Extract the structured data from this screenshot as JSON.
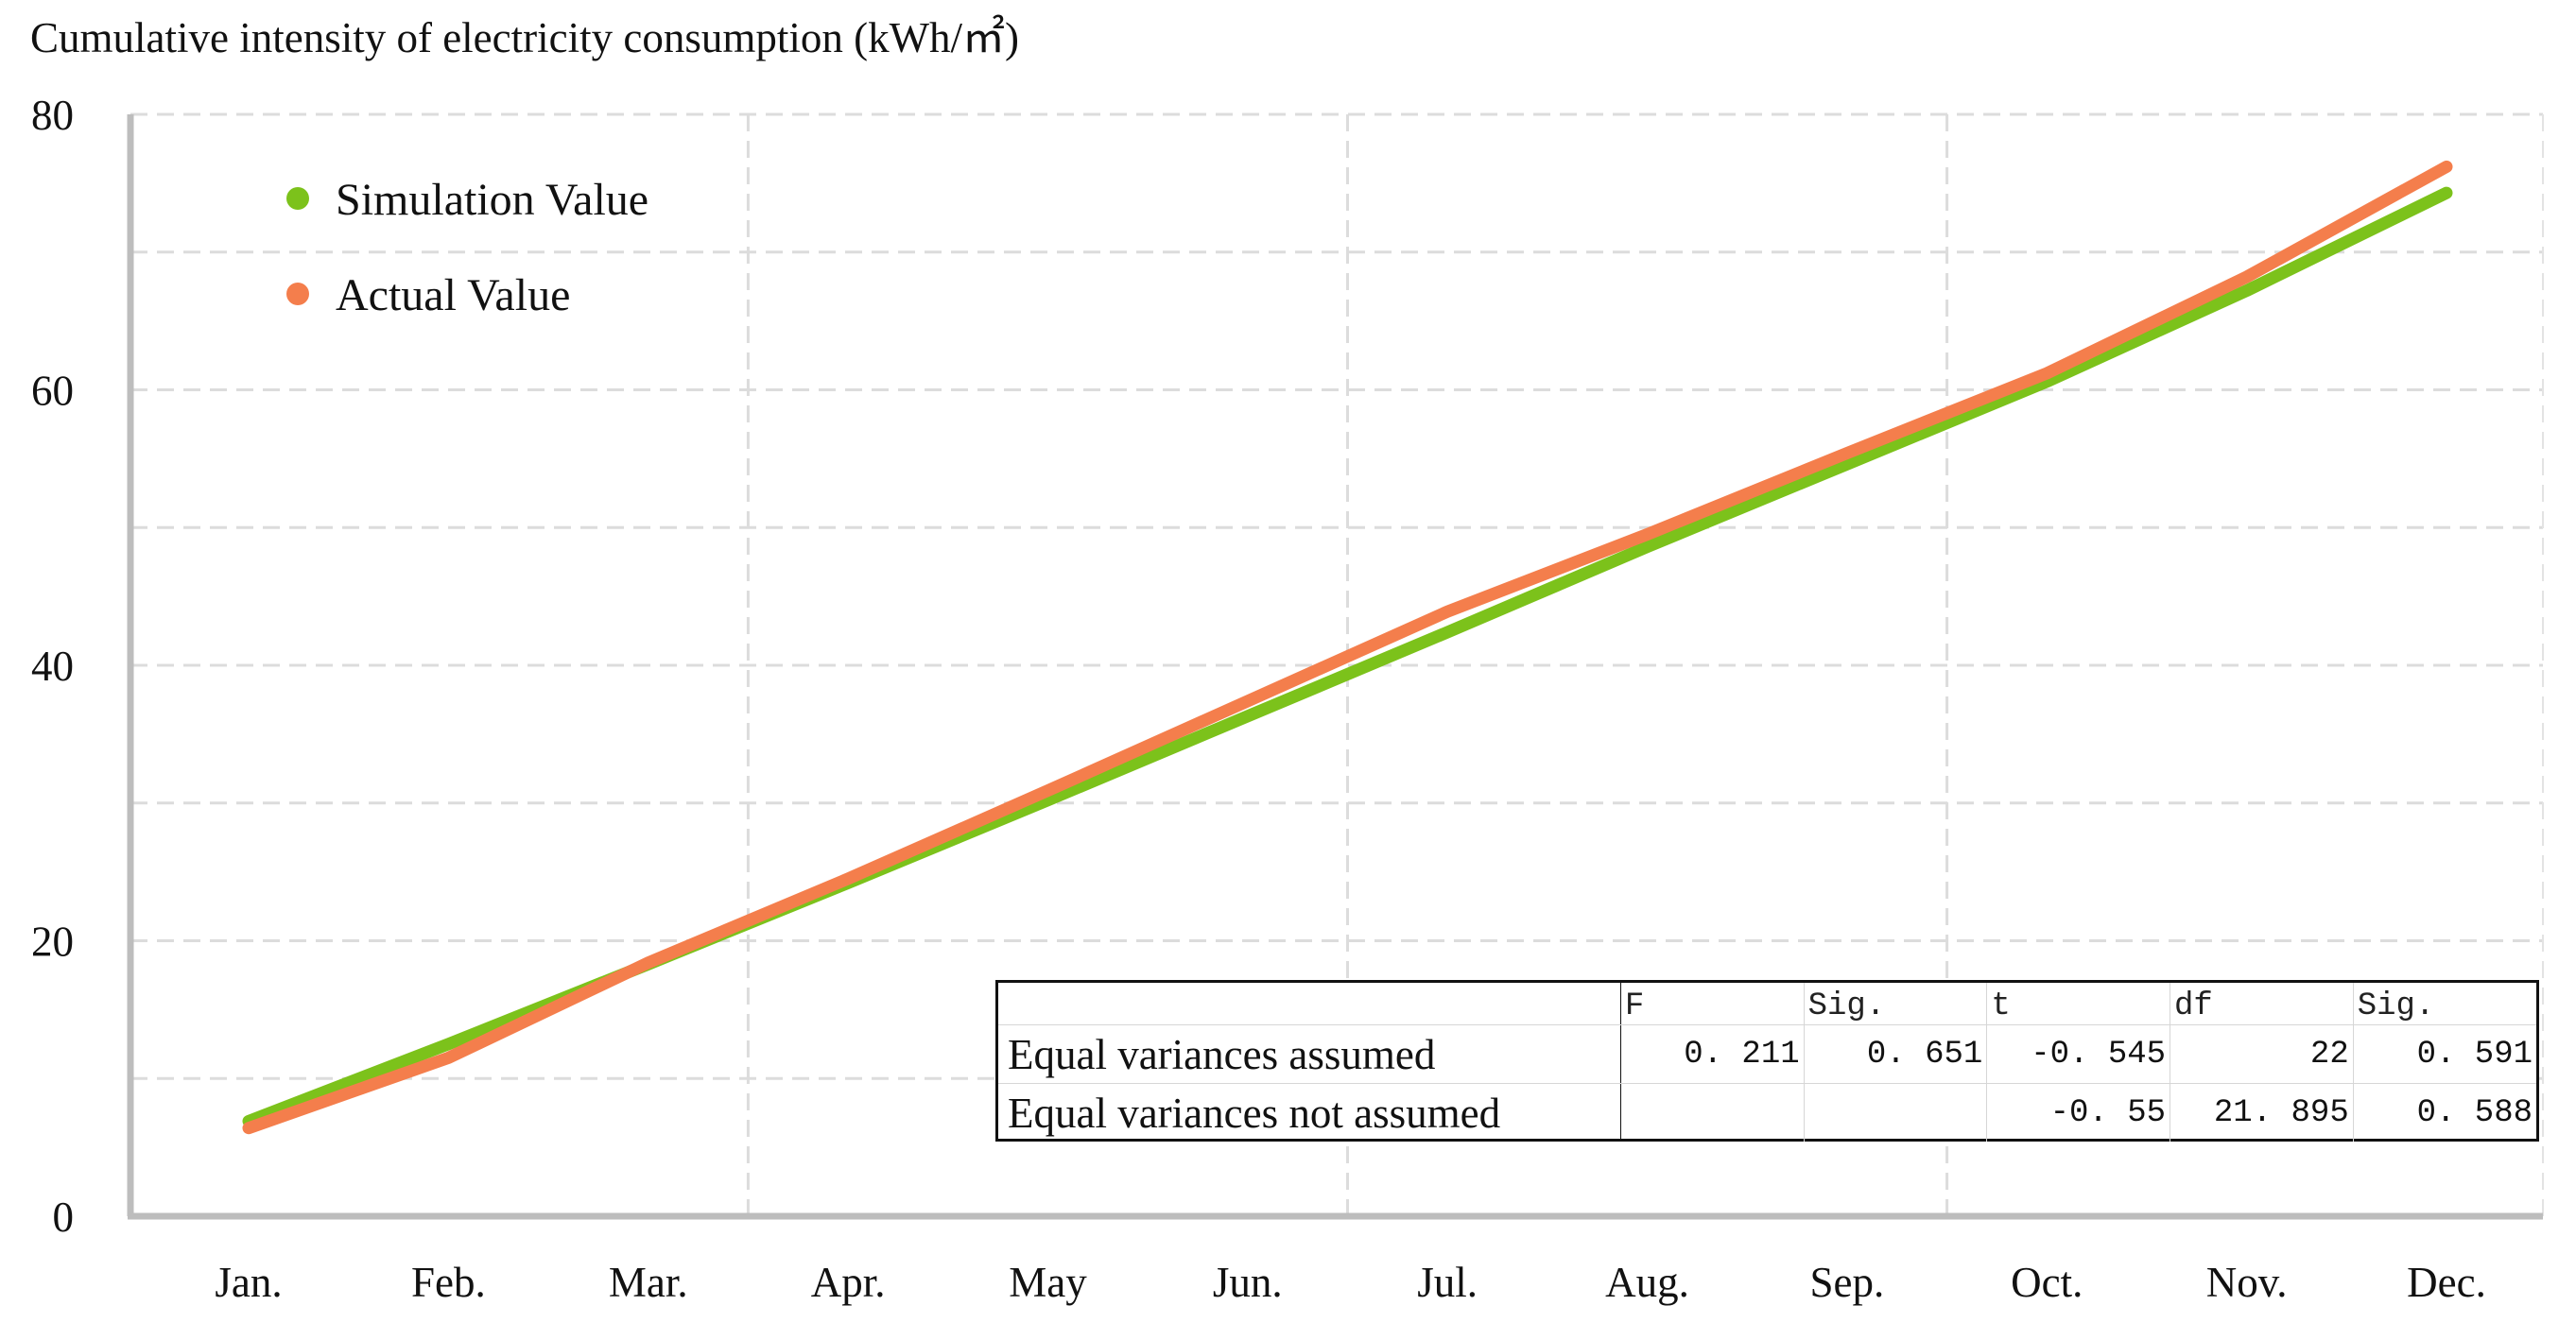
{
  "chart_data": {
    "type": "line",
    "title": "Cumulative intensity of electricity consumption (kWh/㎡)",
    "categories": [
      "Jan.",
      "Feb.",
      "Mar.",
      "Apr.",
      "May",
      "Jun.",
      "Jul.",
      "Aug.",
      "Sep.",
      "Oct.",
      "Nov.",
      "Dec."
    ],
    "x_ticks": [
      "Jan.",
      "Feb.",
      "Mar.",
      "Apr.",
      "May",
      "Jun.",
      "Jul.",
      "Aug.",
      "Sep.",
      "Oct.",
      "Nov.",
      "Dec."
    ],
    "y_ticks": [
      "0",
      "20",
      "40",
      "60",
      "80"
    ],
    "ylim": [
      0,
      80
    ],
    "y_grid_step": 10,
    "grid": true,
    "legend_position": "top-left",
    "series": [
      {
        "name": "Simulation Value",
        "color": "#7cc21b",
        "values": [
          6.9,
          12.5,
          18.3,
          24.2,
          30.2,
          36.3,
          42.4,
          48.6,
          54.6,
          60.6,
          67.2,
          74.3
        ]
      },
      {
        "name": "Actual Value",
        "color": "#f47e4c",
        "values": [
          6.4,
          11.5,
          18.4,
          24.5,
          30.9,
          37.4,
          43.9,
          49.5,
          55.4,
          61.2,
          68.2,
          76.2
        ]
      }
    ]
  },
  "stats_table": {
    "headers": [
      "F",
      "Sig.",
      "t",
      "df",
      "Sig."
    ],
    "rows": [
      {
        "label": "Equal variances assumed",
        "F": "0. 211",
        "sig1": "0. 651",
        "t": "-0. 545",
        "df": "22",
        "sig2": "0. 591"
      },
      {
        "label": "Equal variances not assumed",
        "F": "",
        "sig1": "",
        "t": "-0. 55",
        "df": "21. 895",
        "sig2": "0. 588"
      }
    ]
  }
}
